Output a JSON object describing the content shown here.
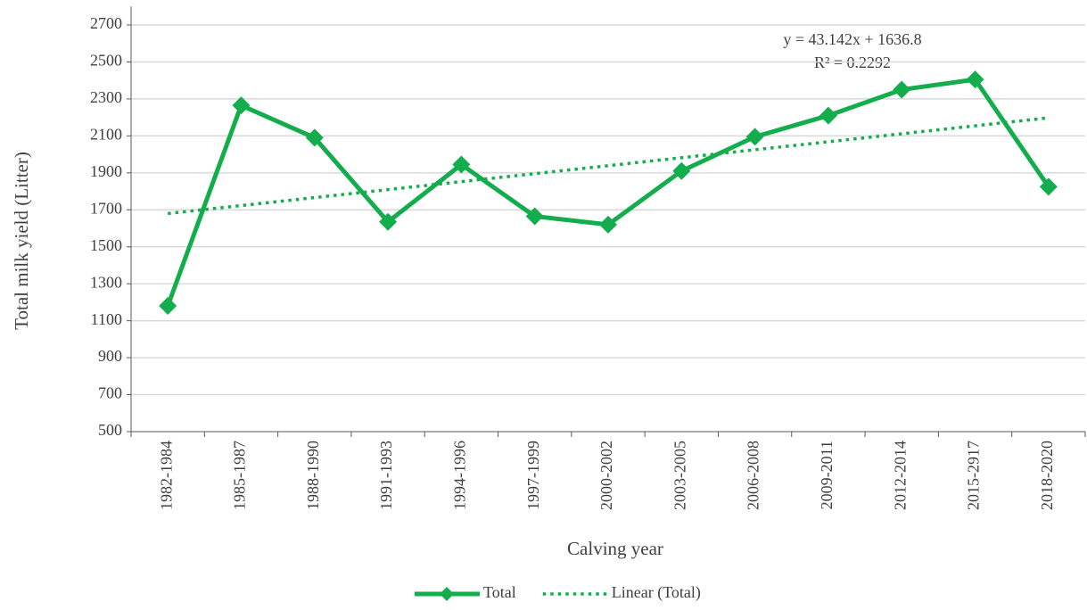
{
  "chart_data": {
    "type": "line",
    "x_label": "Calving year",
    "y_label": "Total milk yield (Litter)",
    "categories": [
      "1982-1984",
      "1985-1987",
      "1988-1990",
      "1991-1993",
      "1994-1996",
      "1997-1999",
      "2000-2002",
      "2003-2005",
      "2006-2008",
      "2009-2011",
      "2012-2014",
      "2015-2917",
      "2018-2020"
    ],
    "series": [
      {
        "name": "Total",
        "color": "#14ad4d",
        "style": "solid",
        "marker": "diamond",
        "values": [
          1180,
          2265,
          2090,
          1635,
          1945,
          1665,
          1620,
          1910,
          2095,
          2210,
          2350,
          2405,
          1825
        ]
      },
      {
        "name": "Linear (Total)",
        "color": "#14ad4d",
        "style": "dotted",
        "values": [
          1679.9,
          1723.1,
          1766.2,
          1809.4,
          1852.5,
          1895.7,
          1938.8,
          1981.9,
          2025.1,
          2068.2,
          2111.4,
          2154.5,
          2197.6
        ]
      }
    ],
    "annotations": [
      "y = 43.142x + 1636.8",
      "R² = 0.2292"
    ],
    "ylim": [
      500,
      2800
    ],
    "yticks": [
      500,
      700,
      900,
      1100,
      1300,
      1500,
      1700,
      1900,
      2100,
      2300,
      2500,
      2700
    ],
    "grid": true,
    "legend": "bottom"
  }
}
